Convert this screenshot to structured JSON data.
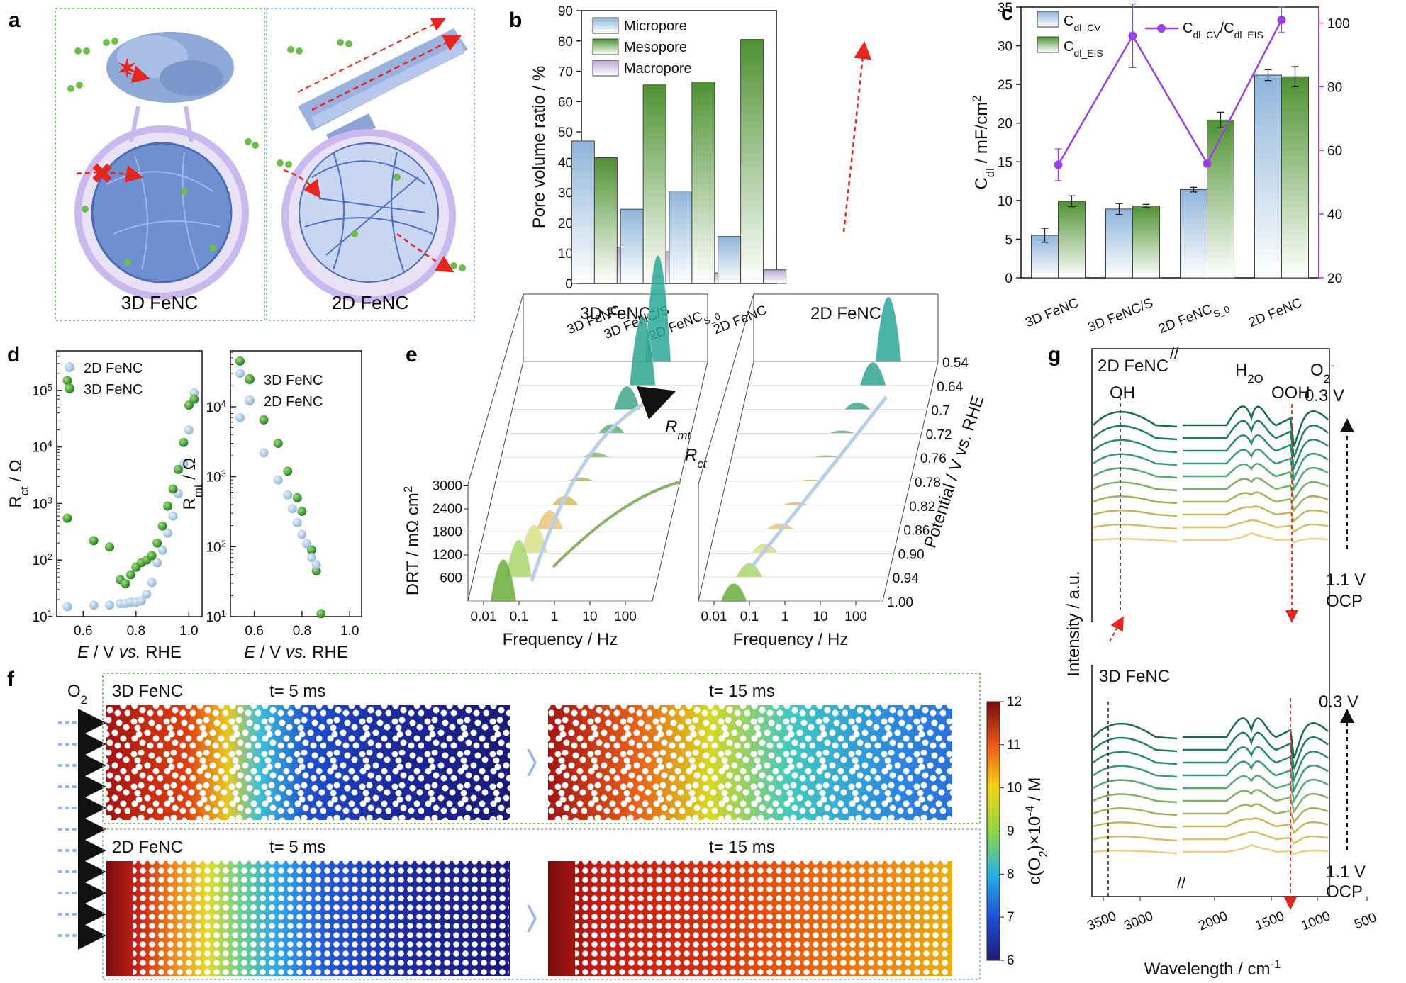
{
  "panel_labels": [
    "a",
    "b",
    "c",
    "d",
    "e",
    "f",
    "g"
  ],
  "panel_a": {
    "left_label": "3D FeNC",
    "right_label": "2D FeNC"
  },
  "chart_data": [
    {
      "id": "b",
      "type": "bar",
      "title": "",
      "ylabel": "Pore volume ratio / %",
      "xlabel": "",
      "ylim": [
        0,
        90
      ],
      "yticks": [
        0,
        10,
        20,
        30,
        40,
        50,
        60,
        70,
        80,
        90
      ],
      "categories": [
        "3D FeNC",
        "3D FeNC/S",
        "2D FeNC_S0",
        "2D FeNC"
      ],
      "series": [
        {
          "name": "Micropore",
          "color": "#9dbfdf",
          "values": [
            47,
            24.5,
            30.5,
            15.5
          ]
        },
        {
          "name": "Mesopore",
          "color": "#5a9a3a",
          "values": [
            41.5,
            65.5,
            66.5,
            80.5
          ]
        },
        {
          "name": "Macropore",
          "color": "#c9b8dc",
          "values": [
            12,
            10.5,
            3.5,
            4.5
          ]
        }
      ]
    },
    {
      "id": "c",
      "type": "bar",
      "ylabel": "C_dl / mF/cm^2",
      "ylim": [
        0,
        35
      ],
      "yticks": [
        0,
        5,
        10,
        15,
        20,
        25,
        30,
        35
      ],
      "y2lim": [
        20,
        105
      ],
      "y2ticks": [
        20,
        40,
        60,
        80,
        100
      ],
      "categories": [
        "3D FeNC",
        "3D FeNC/S",
        "2D FeNC_S0",
        "2D FeNC"
      ],
      "series": [
        {
          "name": "C_dl_CV",
          "color": "#9dbfdf",
          "values": [
            5.5,
            8.9,
            11.4,
            26.2
          ],
          "errors": [
            0.9,
            0.7,
            0.3,
            0.7
          ]
        },
        {
          "name": "C_dl_EIS",
          "color": "#5a9a3a",
          "values": [
            9.9,
            9.3,
            20.4,
            26.0
          ],
          "errors": [
            0.7,
            0.2,
            1.0,
            1.3
          ]
        },
        {
          "name": "C_dl_CV/C_dl_EIS",
          "type": "line",
          "axis": "right",
          "color": "#9b3fe6",
          "values": [
            55.5,
            96,
            55.9,
            101
          ],
          "errors": [
            5,
            10,
            0,
            4
          ]
        }
      ]
    },
    {
      "id": "d-left",
      "type": "scatter",
      "xlabel": "E / V vs. RHE",
      "ylabel": "R_ct / Ω",
      "xlim": [
        0.5,
        1.05
      ],
      "xticks": [
        0.6,
        0.8,
        1.0
      ],
      "ylog": true,
      "ylim_exp": [
        1,
        5.7
      ],
      "yticks_exp": [
        1,
        2,
        3,
        4,
        5
      ],
      "series": [
        {
          "name": "2D FeNC",
          "color": "#a9c8e6",
          "x": [
            0.54,
            0.64,
            0.7,
            0.74,
            0.76,
            0.78,
            0.8,
            0.82,
            0.84,
            0.86,
            0.88,
            0.9,
            0.92,
            0.94,
            0.96,
            0.98,
            1.0,
            1.02
          ],
          "y": [
            15,
            16,
            16,
            17,
            17,
            18,
            18,
            19,
            25,
            40,
            90,
            150,
            300,
            600,
            1500,
            5000,
            20000,
            90000
          ]
        },
        {
          "name": "3D FeNC",
          "color": "#2e9a2a",
          "x": [
            0.54,
            0.54,
            0.64,
            0.7,
            0.74,
            0.76,
            0.78,
            0.8,
            0.82,
            0.84,
            0.86,
            0.88,
            0.9,
            0.92,
            0.94,
            0.96,
            0.98,
            1.0,
            1.02
          ],
          "y": [
            150000,
            550,
            220,
            170,
            45,
            38,
            55,
            75,
            90,
            100,
            120,
            200,
            400,
            900,
            1800,
            4000,
            12000,
            55000,
            70000
          ]
        }
      ]
    },
    {
      "id": "d-right",
      "type": "scatter",
      "xlabel": "E / V vs. RHE",
      "ylabel": "R_mt / Ω",
      "xlim": [
        0.5,
        1.05
      ],
      "xticks": [
        0.6,
        0.8,
        1.0
      ],
      "ylog": true,
      "ylim_exp": [
        1,
        4.8
      ],
      "yticks_exp": [
        1,
        2,
        3,
        4
      ],
      "series": [
        {
          "name": "3D FeNC",
          "color": "#2e9a2a",
          "x": [
            0.54,
            0.64,
            0.7,
            0.74,
            0.78,
            0.8,
            0.84,
            0.86,
            0.88
          ],
          "y": [
            45000,
            6500,
            3000,
            1200,
            500,
            320,
            90,
            45,
            11
          ]
        },
        {
          "name": "2D FeNC",
          "color": "#a9c8e6",
          "x": [
            0.54,
            0.54,
            0.64,
            0.7,
            0.74,
            0.76,
            0.78,
            0.8,
            0.82,
            0.84,
            0.86
          ],
          "y": [
            30000,
            7000,
            2200,
            900,
            550,
            350,
            220,
            150,
            110,
            70,
            55
          ]
        }
      ]
    },
    {
      "id": "e",
      "type": "area",
      "ylabel": "DRT / mΩ cm2",
      "xlabel": "Frequency / Hz",
      "xlabel2": "Frequency / Hz",
      "zlabel": "Potential / V vs. RHE",
      "yticks": [
        600,
        1200,
        1800,
        2400,
        3000
      ],
      "xticks": [
        "0.01",
        "0.1",
        "1",
        "10",
        "100"
      ],
      "potentials": [
        "0.54",
        "0.64",
        "0.7",
        "0.72",
        "0.76",
        "0.78",
        "0.82",
        "0.86",
        "0.90",
        "0.94",
        "1.00"
      ],
      "titles": [
        "3D FeNC",
        "2D FeNC"
      ],
      "annotations": [
        "R_mt",
        "R_ct"
      ],
      "peak_heights_3d": [
        2300,
        1500,
        500,
        200,
        100,
        80,
        200,
        400,
        600,
        800,
        900
      ],
      "peak_heights_2d": [
        1400,
        500,
        150,
        60,
        40,
        30,
        60,
        120,
        200,
        300,
        380
      ]
    },
    {
      "id": "f",
      "type": "heatmap",
      "colorbar_label": "c(O2)×10^-4 / M",
      "colorbar_range": [
        6,
        12
      ],
      "colorbar_ticks": [
        6,
        7,
        8,
        9,
        10,
        11,
        12
      ],
      "inlet_label": "O2",
      "rows": [
        {
          "title": "3D FeNC",
          "times": [
            "t= 5 ms",
            "t= 15 ms"
          ]
        },
        {
          "title": "2D FeNC",
          "times": [
            "t= 5 ms",
            "t= 15 ms"
          ]
        }
      ]
    },
    {
      "id": "g",
      "type": "line",
      "xlabel": "Wavelength / cm-1",
      "ylabel": "Intensity / a.u.",
      "xticks": [
        "3500",
        "3000",
        "2000",
        "1500",
        "1000",
        "500"
      ],
      "titles": [
        "2D FeNC",
        "3D FeNC"
      ],
      "band_labels": [
        "OH",
        "H2O",
        "OOH",
        "O2-"
      ],
      "potential_labels": [
        "0.3 V",
        "1.1 V",
        "OCP"
      ],
      "n_traces_per_panel": 10
    }
  ],
  "colors": {
    "micro": "#9dbfdf",
    "meso": "#5a9a3a",
    "macro": "#c9b8dc",
    "ratio_line": "#9b3fe6",
    "dashed_red": "#e8261f"
  }
}
